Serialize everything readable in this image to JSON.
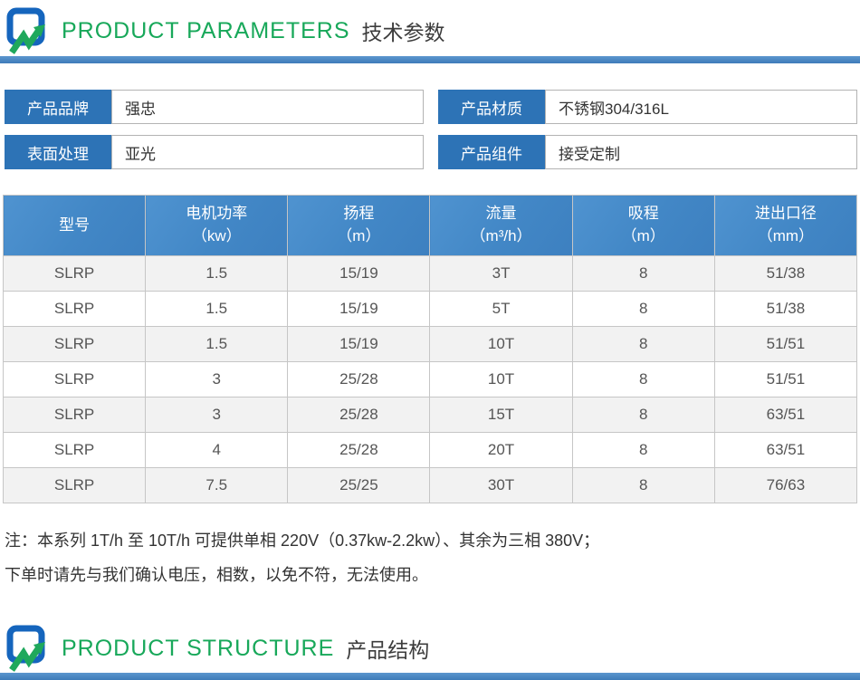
{
  "sections": {
    "parameters": {
      "title_en": "PRODUCT PARAMETERS",
      "title_zh": "技术参数"
    },
    "structure": {
      "title_en": "PRODUCT STRUCTURE",
      "title_zh": "产品结构"
    }
  },
  "fields": [
    {
      "label": "产品品牌",
      "value": "强忠"
    },
    {
      "label": "产品材质",
      "value": "不锈钢304/316L"
    },
    {
      "label": "表面处理",
      "value": "亚光"
    },
    {
      "label": "产品组件",
      "value": "接受定制"
    }
  ],
  "table": {
    "headers": [
      {
        "name": "型号",
        "unit": ""
      },
      {
        "name": "电机功率",
        "unit": "（kw）"
      },
      {
        "name": "扬程",
        "unit": "（m）"
      },
      {
        "name": "流量",
        "unit": "（m³/h）"
      },
      {
        "name": "吸程",
        "unit": "（m）"
      },
      {
        "name": "进出口径",
        "unit": "（mm）"
      }
    ],
    "rows": [
      [
        "SLRP",
        "1.5",
        "15/19",
        "3T",
        "8",
        "51/38"
      ],
      [
        "SLRP",
        "1.5",
        "15/19",
        "5T",
        "8",
        "51/38"
      ],
      [
        "SLRP",
        "1.5",
        "15/19",
        "10T",
        "8",
        "51/51"
      ],
      [
        "SLRP",
        "3",
        "25/28",
        "10T",
        "8",
        "51/51"
      ],
      [
        "SLRP",
        "3",
        "25/28",
        "15T",
        "8",
        "63/51"
      ],
      [
        "SLRP",
        "4",
        "25/28",
        "20T",
        "8",
        "63/51"
      ],
      [
        "SLRP",
        "7.5",
        "25/25",
        "30T",
        "8",
        "76/63"
      ]
    ]
  },
  "note": {
    "line1": "注：本系列 1T/h 至 10T/h 可提供单相 220V（0.37kw-2.2kw）、其余为三相 380V；",
    "line2": "下单时请先与我们确认电压，相数，以免不符，无法使用。"
  },
  "colors": {
    "header_green": "#18a85a",
    "label_blue": "#2d73b6",
    "table_header_blue": "#4289c8",
    "divider_blue": "#4383c1",
    "row_stripe_gray": "#f2f2f2"
  }
}
